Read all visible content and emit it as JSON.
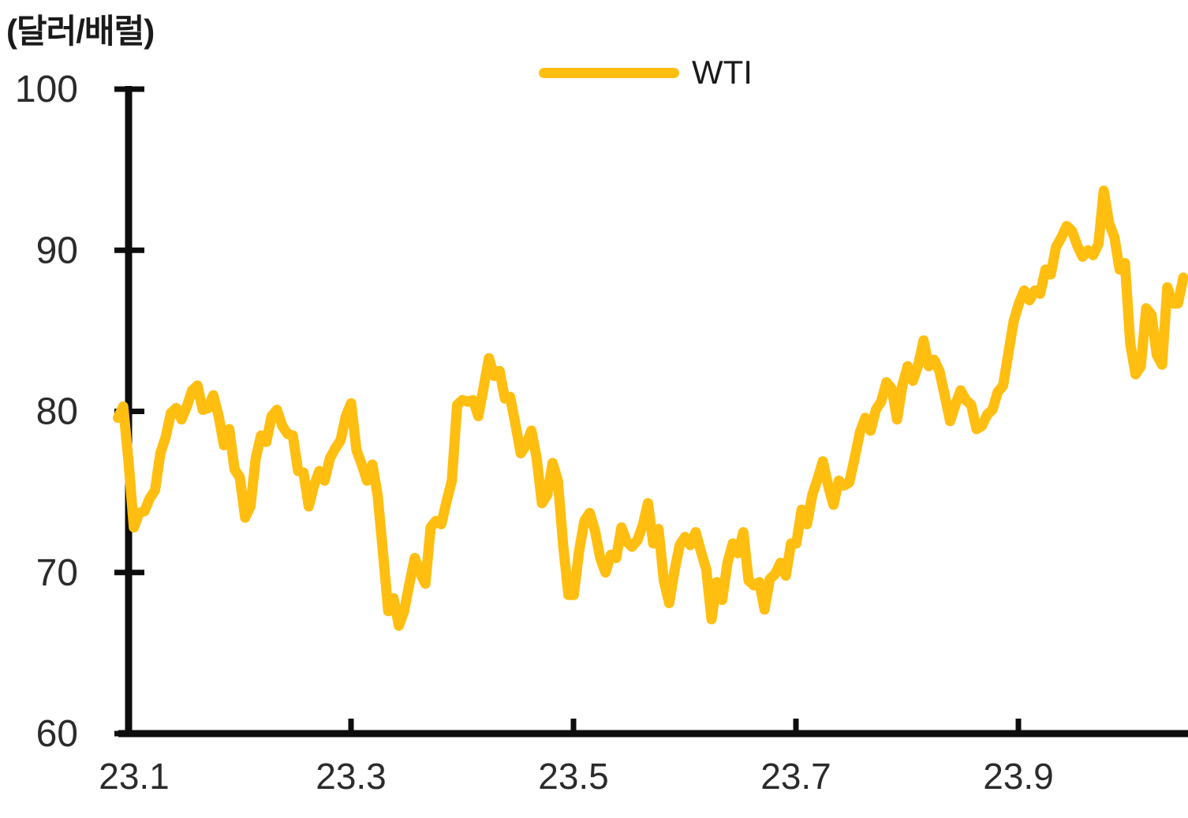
{
  "chart_data": {
    "type": "line",
    "title": "",
    "unit": "(달러/배럴)",
    "xlabel": "",
    "ylabel": "",
    "ylim": [
      60,
      100
    ],
    "y_ticks": [
      100,
      90,
      80,
      70,
      60
    ],
    "x_tick_labels": [
      "23.1",
      "23.3",
      "23.5",
      "23.7",
      "23.9"
    ],
    "grid": false,
    "legend_position": "top-center",
    "series": [
      {
        "name": "WTI",
        "color": "#FFBE10",
        "monthly": [
          {
            "month": "22.12",
            "values": [
              79.6,
              80.3
            ]
          },
          {
            "month": "23.1",
            "values": [
              76.9,
              72.8,
              73.7,
              73.8,
              74.6,
              75.1,
              77.4,
              78.4,
              79.9,
              80.2,
              79.5,
              80.3,
              81.3,
              81.6,
              80.1,
              80.2,
              81.0,
              79.7,
              77.9,
              78.9
            ]
          },
          {
            "month": "23.2",
            "values": [
              76.4,
              75.9,
              73.4,
              74.1,
              77.1,
              78.5,
              78.1,
              79.7,
              80.1,
              79.1,
              78.6,
              78.5,
              76.3,
              76.2,
              74.1,
              75.4,
              76.3,
              75.7,
              77.1
            ]
          },
          {
            "month": "23.3",
            "values": [
              77.7,
              78.2,
              79.7,
              80.5,
              77.6,
              76.7,
              75.7,
              76.7,
              74.8,
              71.3,
              67.6,
              68.4,
              66.7,
              67.6,
              69.3,
              70.9,
              70.0,
              69.3,
              72.8,
              73.2,
              73.0,
              74.4,
              75.7
            ]
          },
          {
            "month": "23.4",
            "values": [
              80.4,
              80.7,
              80.6,
              80.7,
              79.7,
              81.5,
              83.3,
              82.2,
              82.5,
              80.8,
              80.9,
              79.2,
              77.4,
              77.9,
              78.8,
              77.1,
              74.3,
              74.8,
              76.8
            ]
          },
          {
            "month": "23.5",
            "values": [
              75.7,
              71.7,
              68.6,
              68.6,
              71.3,
              73.2,
              73.7,
              72.6,
              70.9,
              70.0,
              71.1,
              70.9,
              72.8,
              71.9,
              71.6,
              72.0,
              72.9,
              74.3,
              71.8,
              72.7,
              69.5,
              68.1
            ]
          },
          {
            "month": "23.6",
            "values": [
              70.1,
              71.7,
              72.2,
              71.7,
              72.5,
              71.3,
              70.2,
              67.1,
              69.4,
              68.3,
              70.6,
              71.8,
              71.2,
              72.5,
              69.5,
              69.2,
              69.4,
              67.7,
              69.6,
              69.9,
              70.6
            ]
          },
          {
            "month": "23.7",
            "values": [
              69.8,
              71.8,
              71.8,
              73.9,
              73.0,
              74.8,
              75.8,
              76.9,
              75.4,
              74.2,
              75.7,
              75.4,
              75.6,
              77.1,
              78.7,
              79.6,
              78.8,
              80.1,
              80.6,
              81.8
            ]
          },
          {
            "month": "23.8",
            "values": [
              81.4,
              79.5,
              81.6,
              82.8,
              81.9,
              82.9,
              84.4,
              82.8,
              83.2,
              82.5,
              81.0,
              79.4,
              80.4,
              81.3,
              80.7,
              80.4,
              78.9,
              79.1,
              79.8,
              80.1,
              81.2,
              81.6,
              83.6
            ]
          },
          {
            "month": "23.9",
            "values": [
              85.6,
              86.7,
              87.5,
              86.9,
              87.5,
              87.3,
              88.8,
              88.5,
              90.2,
              90.8,
              91.5,
              91.2,
              90.3,
              89.6,
              90.0,
              89.7,
              90.4,
              93.7,
              91.7,
              90.8
            ]
          },
          {
            "month": "23.10",
            "values": [
              88.8,
              89.2,
              84.2,
              82.3,
              82.8,
              86.4,
              86.0,
              83.5,
              82.9,
              87.7,
              86.7,
              86.7,
              88.3
            ]
          }
        ]
      }
    ]
  },
  "colors": {
    "background": "#ffffff",
    "axis": "#0d0d0d",
    "tick_label": "#2b2b2b",
    "series_wti": "#FFBE10"
  }
}
